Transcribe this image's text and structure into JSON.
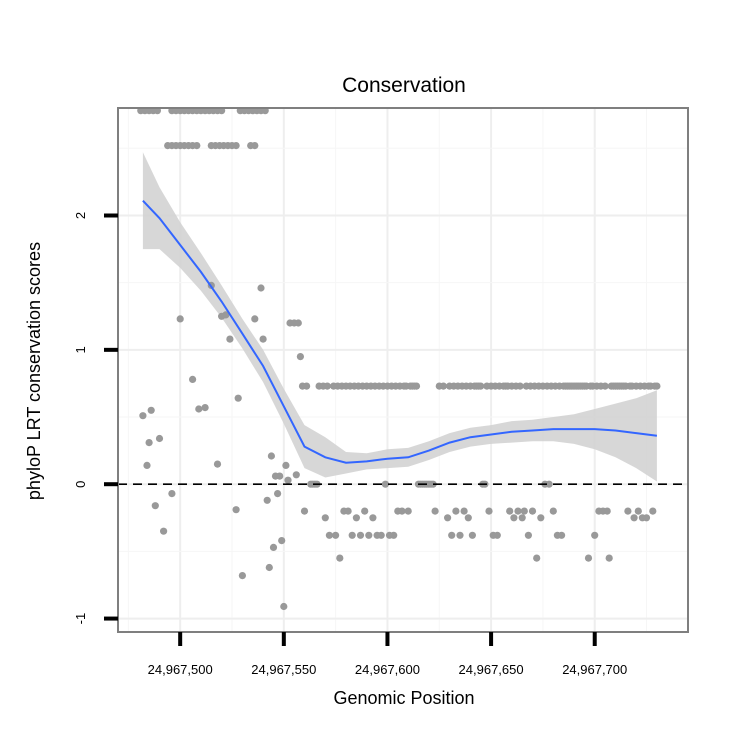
{
  "chart_data": {
    "type": "scatter",
    "title": "Conservation",
    "xlabel": "Genomic Position",
    "ylabel": "phyloP LRT conservation scores",
    "xlim": [
      24967470,
      24967745
    ],
    "ylim": [
      -1.1,
      2.8
    ],
    "x_ticks": [
      24967500,
      24967550,
      24967600,
      24967650,
      24967700
    ],
    "x_tick_labels": [
      "24,967,500",
      "24,967,550",
      "24,967,600",
      "24,967,650",
      "24,967,700"
    ],
    "y_ticks": [
      -1,
      0,
      1,
      2
    ],
    "y_tick_labels": [
      "-1",
      "0",
      "1",
      "2"
    ],
    "reference_line": {
      "y": 0,
      "style": "dashed",
      "color": "#000000"
    },
    "colors": {
      "points": "#999999",
      "smooth": "#3366ff",
      "ribbon": "#d0d0d0",
      "border": "#7f7f7f",
      "grid": "#eeeeee"
    },
    "points": [
      [
        24967481,
        2.78
      ],
      [
        24967483,
        2.78
      ],
      [
        24967485,
        2.78
      ],
      [
        24967487,
        2.78
      ],
      [
        24967489,
        2.78
      ],
      [
        24967496,
        2.78
      ],
      [
        24967498,
        2.78
      ],
      [
        24967500,
        2.78
      ],
      [
        24967502,
        2.78
      ],
      [
        24967504,
        2.78
      ],
      [
        24967506,
        2.78
      ],
      [
        24967508,
        2.78
      ],
      [
        24967510,
        2.78
      ],
      [
        24967512,
        2.78
      ],
      [
        24967514,
        2.78
      ],
      [
        24967516,
        2.78
      ],
      [
        24967518,
        2.78
      ],
      [
        24967520,
        2.78
      ],
      [
        24967529,
        2.78
      ],
      [
        24967531,
        2.78
      ],
      [
        24967533,
        2.78
      ],
      [
        24967535,
        2.78
      ],
      [
        24967537,
        2.78
      ],
      [
        24967539,
        2.78
      ],
      [
        24967541,
        2.78
      ],
      [
        24967494,
        2.52
      ],
      [
        24967496,
        2.52
      ],
      [
        24967498,
        2.52
      ],
      [
        24967500,
        2.52
      ],
      [
        24967502,
        2.52
      ],
      [
        24967504,
        2.52
      ],
      [
        24967506,
        2.52
      ],
      [
        24967508,
        2.52
      ],
      [
        24967515,
        2.52
      ],
      [
        24967517,
        2.52
      ],
      [
        24967519,
        2.52
      ],
      [
        24967521,
        2.52
      ],
      [
        24967523,
        2.52
      ],
      [
        24967525,
        2.52
      ],
      [
        24967527,
        2.52
      ],
      [
        24967534,
        2.52
      ],
      [
        24967536,
        2.52
      ],
      [
        24967482,
        0.51
      ],
      [
        24967484,
        0.14
      ],
      [
        24967485,
        0.31
      ],
      [
        24967486,
        0.55
      ],
      [
        24967488,
        -0.16
      ],
      [
        24967490,
        0.34
      ],
      [
        24967492,
        -0.35
      ],
      [
        24967496,
        -0.07
      ],
      [
        24967500,
        1.23
      ],
      [
        24967506,
        0.78
      ],
      [
        24967509,
        0.56
      ],
      [
        24967512,
        0.57
      ],
      [
        24967515,
        1.48
      ],
      [
        24967518,
        0.15
      ],
      [
        24967520,
        1.25
      ],
      [
        24967522,
        1.26
      ],
      [
        24967524,
        1.08
      ],
      [
        24967527,
        -0.19
      ],
      [
        24967528,
        0.64
      ],
      [
        24967530,
        -0.68
      ],
      [
        24967536,
        1.23
      ],
      [
        24967539,
        1.46
      ],
      [
        24967540,
        1.08
      ],
      [
        24967542,
        -0.12
      ],
      [
        24967543,
        -0.62
      ],
      [
        24967544,
        0.21
      ],
      [
        24967545,
        -0.47
      ],
      [
        24967546,
        0.06
      ],
      [
        24967547,
        -0.07
      ],
      [
        24967548,
        0.06
      ],
      [
        24967549,
        -0.42
      ],
      [
        24967550,
        -0.91
      ],
      [
        24967551,
        0.14
      ],
      [
        24967552,
        0.03
      ],
      [
        24967553,
        1.2
      ],
      [
        24967555,
        1.2
      ],
      [
        24967556,
        0.07
      ],
      [
        24967557,
        1.2
      ],
      [
        24967558,
        0.95
      ],
      [
        24967559,
        0.73
      ],
      [
        24967560,
        -0.2
      ],
      [
        24967561,
        0.73
      ],
      [
        24967563,
        0.0
      ],
      [
        24967564,
        0.0
      ],
      [
        24967565,
        0.0
      ],
      [
        24967566,
        0.0
      ],
      [
        24967567,
        0.73
      ],
      [
        24967569,
        0.73
      ],
      [
        24967570,
        -0.25
      ],
      [
        24967571,
        0.73
      ],
      [
        24967572,
        -0.38
      ],
      [
        24967574,
        0.73
      ],
      [
        24967575,
        -0.38
      ],
      [
        24967576,
        0.73
      ],
      [
        24967577,
        -0.55
      ],
      [
        24967578,
        0.73
      ],
      [
        24967579,
        -0.2
      ],
      [
        24967580,
        0.73
      ],
      [
        24967581,
        -0.2
      ],
      [
        24967582,
        0.73
      ],
      [
        24967583,
        -0.38
      ],
      [
        24967584,
        0.73
      ],
      [
        24967585,
        -0.25
      ],
      [
        24967586,
        0.73
      ],
      [
        24967587,
        -0.38
      ],
      [
        24967588,
        0.73
      ],
      [
        24967589,
        -0.2
      ],
      [
        24967590,
        0.73
      ],
      [
        24967591,
        -0.38
      ],
      [
        24967592,
        0.73
      ],
      [
        24967593,
        -0.25
      ],
      [
        24967594,
        0.73
      ],
      [
        24967595,
        -0.38
      ],
      [
        24967596,
        0.73
      ],
      [
        24967597,
        -0.38
      ],
      [
        24967598,
        0.73
      ],
      [
        24967599,
        0.0
      ],
      [
        24967600,
        0.73
      ],
      [
        24967601,
        -0.38
      ],
      [
        24967602,
        0.73
      ],
      [
        24967603,
        -0.38
      ],
      [
        24967604,
        0.73
      ],
      [
        24967605,
        -0.2
      ],
      [
        24967606,
        0.73
      ],
      [
        24967607,
        -0.2
      ],
      [
        24967608,
        0.73
      ],
      [
        24967609,
        0.73
      ],
      [
        24967610,
        -0.2
      ],
      [
        24967611,
        0.73
      ],
      [
        24967612,
        0.73
      ],
      [
        24967613,
        0.73
      ],
      [
        24967614,
        0.73
      ],
      [
        24967615,
        0.0
      ],
      [
        24967616,
        0.0
      ],
      [
        24967617,
        0.0
      ],
      [
        24967618,
        0.0
      ],
      [
        24967619,
        0.0
      ],
      [
        24967620,
        0.0
      ],
      [
        24967621,
        0.0
      ],
      [
        24967622,
        0.0
      ],
      [
        24967623,
        -0.2
      ],
      [
        24967625,
        0.73
      ],
      [
        24967627,
        0.73
      ],
      [
        24967629,
        -0.25
      ],
      [
        24967630,
        0.73
      ],
      [
        24967631,
        -0.38
      ],
      [
        24967632,
        0.73
      ],
      [
        24967633,
        -0.2
      ],
      [
        24967634,
        0.73
      ],
      [
        24967635,
        -0.38
      ],
      [
        24967636,
        0.73
      ],
      [
        24967637,
        -0.2
      ],
      [
        24967638,
        0.73
      ],
      [
        24967639,
        -0.25
      ],
      [
        24967640,
        0.73
      ],
      [
        24967641,
        -0.38
      ],
      [
        24967642,
        0.73
      ],
      [
        24967643,
        0.73
      ],
      [
        24967644,
        0.73
      ],
      [
        24967645,
        0.73
      ],
      [
        24967646,
        0.0
      ],
      [
        24967647,
        0.0
      ],
      [
        24967648,
        0.73
      ],
      [
        24967649,
        -0.2
      ],
      [
        24967650,
        0.73
      ],
      [
        24967651,
        -0.38
      ],
      [
        24967652,
        0.73
      ],
      [
        24967653,
        -0.38
      ],
      [
        24967654,
        0.73
      ],
      [
        24967656,
        0.73
      ],
      [
        24967657,
        0.73
      ],
      [
        24967658,
        0.73
      ],
      [
        24967659,
        -0.2
      ],
      [
        24967660,
        0.73
      ],
      [
        24967661,
        -0.25
      ],
      [
        24967662,
        0.73
      ],
      [
        24967663,
        -0.2
      ],
      [
        24967664,
        0.73
      ],
      [
        24967665,
        -0.25
      ],
      [
        24967666,
        -0.2
      ],
      [
        24967667,
        0.73
      ],
      [
        24967668,
        -0.38
      ],
      [
        24967669,
        0.73
      ],
      [
        24967670,
        -0.2
      ],
      [
        24967671,
        0.73
      ],
      [
        24967672,
        -0.55
      ],
      [
        24967673,
        0.73
      ],
      [
        24967674,
        -0.25
      ],
      [
        24967675,
        0.73
      ],
      [
        24967676,
        0.0
      ],
      [
        24967677,
        0.73
      ],
      [
        24967678,
        0.0
      ],
      [
        24967679,
        0.73
      ],
      [
        24967680,
        -0.2
      ],
      [
        24967681,
        0.73
      ],
      [
        24967682,
        -0.38
      ],
      [
        24967683,
        0.73
      ],
      [
        24967684,
        -0.38
      ],
      [
        24967685,
        0.73
      ],
      [
        24967686,
        0.73
      ],
      [
        24967687,
        0.73
      ],
      [
        24967688,
        0.73
      ],
      [
        24967689,
        0.73
      ],
      [
        24967690,
        0.73
      ],
      [
        24967691,
        0.73
      ],
      [
        24967692,
        0.73
      ],
      [
        24967693,
        0.73
      ],
      [
        24967694,
        0.73
      ],
      [
        24967695,
        0.73
      ],
      [
        24967696,
        0.73
      ],
      [
        24967697,
        -0.55
      ],
      [
        24967698,
        0.73
      ],
      [
        24967699,
        0.73
      ],
      [
        24967700,
        -0.38
      ],
      [
        24967701,
        0.73
      ],
      [
        24967702,
        -0.2
      ],
      [
        24967703,
        0.73
      ],
      [
        24967704,
        -0.2
      ],
      [
        24967705,
        0.73
      ],
      [
        24967706,
        -0.2
      ],
      [
        24967707,
        -0.55
      ],
      [
        24967708,
        0.73
      ],
      [
        24967709,
        0.73
      ],
      [
        24967710,
        0.73
      ],
      [
        24967711,
        0.73
      ],
      [
        24967712,
        0.73
      ],
      [
        24967713,
        0.73
      ],
      [
        24967714,
        0.73
      ],
      [
        24967715,
        0.73
      ],
      [
        24967716,
        -0.2
      ],
      [
        24967717,
        0.73
      ],
      [
        24967718,
        0.73
      ],
      [
        24967719,
        -0.25
      ],
      [
        24967720,
        0.73
      ],
      [
        24967721,
        -0.2
      ],
      [
        24967722,
        0.73
      ],
      [
        24967723,
        -0.25
      ],
      [
        24967724,
        0.73
      ],
      [
        24967725,
        -0.25
      ],
      [
        24967726,
        0.73
      ],
      [
        24967727,
        0.73
      ],
      [
        24967728,
        -0.2
      ],
      [
        24967729,
        0.73
      ],
      [
        24967730,
        0.73
      ]
    ],
    "smooth_line": {
      "x": [
        24967482,
        24967490,
        24967500,
        24967510,
        24967520,
        24967530,
        24967540,
        24967550,
        24967560,
        24967570,
        24967580,
        24967590,
        24967600,
        24967610,
        24967620,
        24967630,
        24967640,
        24967650,
        24967660,
        24967670,
        24967680,
        24967690,
        24967700,
        24967710,
        24967720,
        24967730
      ],
      "y": [
        2.11,
        1.98,
        1.78,
        1.58,
        1.36,
        1.12,
        0.88,
        0.58,
        0.28,
        0.2,
        0.16,
        0.17,
        0.19,
        0.2,
        0.25,
        0.31,
        0.35,
        0.37,
        0.39,
        0.4,
        0.41,
        0.41,
        0.41,
        0.4,
        0.38,
        0.36
      ],
      "lower": [
        1.75,
        1.75,
        1.61,
        1.44,
        1.24,
        1.01,
        0.76,
        0.45,
        0.12,
        0.05,
        0.08,
        0.11,
        0.12,
        0.13,
        0.18,
        0.24,
        0.28,
        0.3,
        0.31,
        0.32,
        0.32,
        0.3,
        0.26,
        0.2,
        0.12,
        0.02
      ],
      "upper": [
        2.47,
        2.21,
        1.95,
        1.72,
        1.48,
        1.23,
        1.0,
        0.71,
        0.44,
        0.35,
        0.24,
        0.23,
        0.26,
        0.27,
        0.32,
        0.38,
        0.42,
        0.44,
        0.47,
        0.48,
        0.5,
        0.52,
        0.56,
        0.6,
        0.64,
        0.7
      ]
    }
  }
}
